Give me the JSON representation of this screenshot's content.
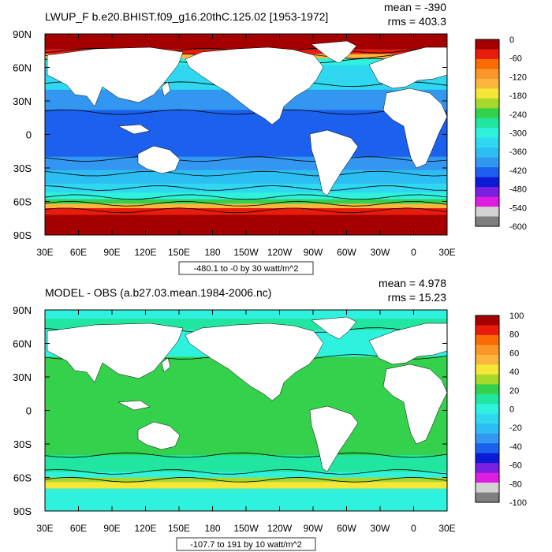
{
  "panels": [
    {
      "title": "LWUP_F b.e20.BHIST.f09_g16.20thC.125.02 [1953-1972]",
      "stats": {
        "mean": "mean = -390",
        "rms": "rms = 403.3"
      },
      "range_label": "-480.1 to -0 by 30 watt/m^2",
      "colorbar": {
        "labels": [
          "0",
          "-60",
          "-120",
          "-180",
          "-240",
          "-300",
          "-360",
          "-420",
          "-480",
          "-540",
          "-600"
        ],
        "colors": [
          "#a50000",
          "#e81c0c",
          "#fa6a05",
          "#fb9628",
          "#fcb63c",
          "#f6e638",
          "#a6d92c",
          "#34d24c",
          "#20e6a0",
          "#2ff2de",
          "#2fd8f0",
          "#2cbef2",
          "#3397f2",
          "#1c60ee",
          "#0c1ad6",
          "#7a1ee0",
          "#dd1ee0",
          "#d2d2d2",
          "#7f7f7f"
        ]
      },
      "field": {
        "background": "#1ac4ee",
        "bands": [
          {
            "lat_top": 90,
            "lat_bot": 76,
            "color": "#a50000"
          },
          {
            "lat_top": 76,
            "lat_bot": 72,
            "color": "#e81c0c"
          },
          {
            "lat_top": 72,
            "lat_bot": 68,
            "color": "#fcb63c"
          },
          {
            "lat_top": 68,
            "lat_bot": 62,
            "color": "#2ff2de"
          },
          {
            "lat_top": 62,
            "lat_bot": 40,
            "color": "#2fd8f0"
          },
          {
            "lat_top": 40,
            "lat_bot": 22,
            "color": "#3397f2"
          },
          {
            "lat_top": 22,
            "lat_bot": -20,
            "color": "#1c60ee"
          },
          {
            "lat_top": -20,
            "lat_bot": -32,
            "color": "#3397f2"
          },
          {
            "lat_top": -32,
            "lat_bot": -44,
            "color": "#2cbef2"
          },
          {
            "lat_top": -44,
            "lat_bot": -52,
            "color": "#2fd8f0"
          },
          {
            "lat_top": -52,
            "lat_bot": -58,
            "color": "#2ff2de"
          },
          {
            "lat_top": -58,
            "lat_bot": -62,
            "color": "#34d24c"
          },
          {
            "lat_top": -62,
            "lat_bot": -66,
            "color": "#fcb63c"
          },
          {
            "lat_top": -66,
            "lat_bot": -72,
            "color": "#e81c0c"
          },
          {
            "lat_top": -72,
            "lat_bot": -90,
            "color": "#a50000"
          }
        ],
        "contours": [
          75,
          70,
          66,
          45,
          20,
          -22,
          -35,
          -48,
          -56,
          -62,
          -68
        ]
      }
    },
    {
      "title": "MODEL - OBS (a.b27.03.mean.1984-2006.nc)",
      "stats": {
        "mean": "mean = 4.978",
        "rms": "rms = 15.23"
      },
      "range_label": "-107.7 to 191 by 10 watt/m^2",
      "colorbar": {
        "labels": [
          "100",
          "80",
          "60",
          "40",
          "20",
          "0",
          "-20",
          "-40",
          "-60",
          "-80",
          "-100"
        ],
        "colors": [
          "#a50000",
          "#e81c0c",
          "#fa6a05",
          "#fb9628",
          "#fcb63c",
          "#f6e638",
          "#a6d92c",
          "#34d24c",
          "#20e6a0",
          "#2ff2de",
          "#2fd8f0",
          "#2cbef2",
          "#3397f2",
          "#1c60ee",
          "#0c1ad6",
          "#7a1ee0",
          "#dd1ee0",
          "#d2d2d2",
          "#7f7f7f"
        ]
      },
      "field": {
        "background": "#34d24c",
        "bands": [
          {
            "lat_top": 90,
            "lat_bot": 82,
            "color": "#2ff2de"
          },
          {
            "lat_top": 82,
            "lat_bot": 72,
            "color": "#20e6a0"
          },
          {
            "lat_top": 72,
            "lat_bot": 48,
            "color": "#2ff2de"
          },
          {
            "lat_top": 48,
            "lat_bot": -40,
            "color": "#34d24c"
          },
          {
            "lat_top": -40,
            "lat_bot": -55,
            "color": "#20e6a0"
          },
          {
            "lat_top": -55,
            "lat_bot": -60,
            "color": "#2ff2de"
          },
          {
            "lat_top": -60,
            "lat_bot": -64,
            "color": "#a6d92c"
          },
          {
            "lat_top": -64,
            "lat_bot": -70,
            "color": "#f6e638"
          },
          {
            "lat_top": -70,
            "lat_bot": -90,
            "color": "#2ff2de"
          }
        ],
        "contours": [
          72,
          48,
          -40,
          -55,
          -62
        ]
      }
    }
  ],
  "axes": {
    "lat_labels": [
      "90N",
      "60N",
      "30N",
      "0",
      "30S",
      "60S",
      "90S"
    ],
    "lon_labels": [
      "30E",
      "60E",
      "90E",
      "120E",
      "150E",
      "180",
      "150W",
      "120W",
      "90W",
      "60W",
      "30W",
      "0",
      "30E"
    ]
  }
}
